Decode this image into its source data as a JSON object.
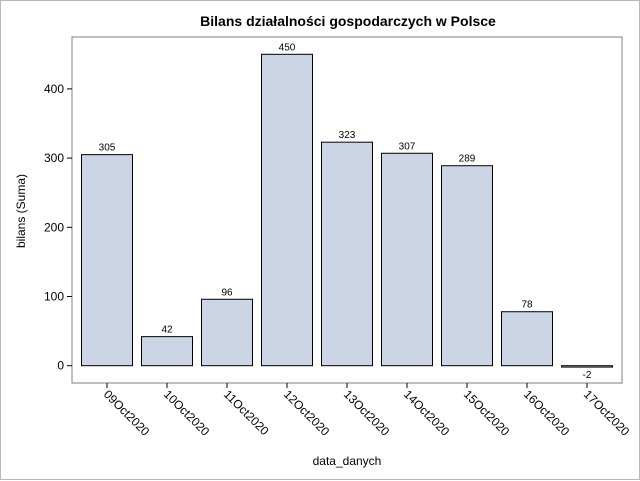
{
  "chart_data": {
    "type": "bar",
    "title": "Bilans działalności gospodarczych w Polsce",
    "xlabel": "data_danych",
    "ylabel": "bilans (Suma)",
    "categories": [
      "09Oct2020",
      "10Oct2020",
      "11Oct2020",
      "12Oct2020",
      "13Oct2020",
      "14Oct2020",
      "15Oct2020",
      "16Oct2020",
      "17Oct2020"
    ],
    "values": [
      305,
      42,
      96,
      450,
      323,
      307,
      289,
      78,
      -2
    ],
    "ylim": [
      -25,
      475
    ],
    "yticks": [
      0,
      100,
      200,
      300,
      400
    ],
    "grid": false,
    "legend": "none",
    "bar_color": "#cbd5e5",
    "bar_edge_color": "#000000"
  }
}
